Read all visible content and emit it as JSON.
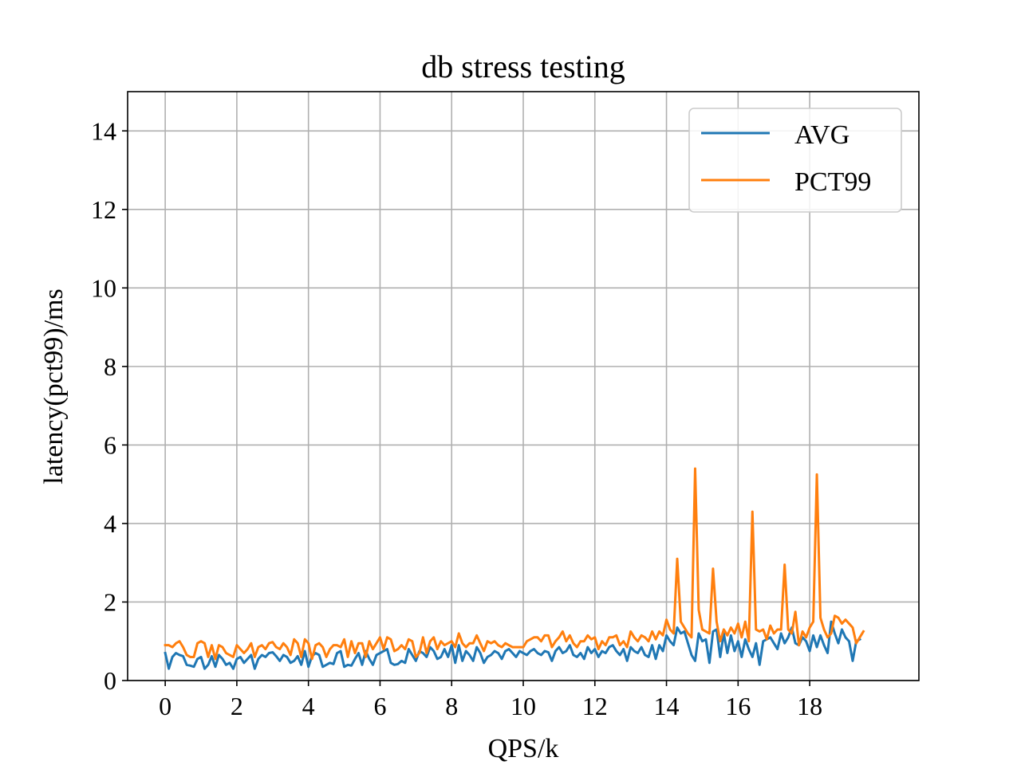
{
  "chart_data": {
    "type": "line",
    "title": "db stress testing",
    "xlabel": "QPS/k",
    "ylabel": "latency(pct99)/ms",
    "xlim": [
      -1.05,
      21.05
    ],
    "ylim": [
      0,
      15
    ],
    "xticks": [
      0,
      2,
      4,
      6,
      8,
      10,
      12,
      14,
      16,
      18
    ],
    "yticks": [
      0,
      2,
      4,
      6,
      8,
      10,
      12,
      14
    ],
    "grid": true,
    "legend_position": "top-right",
    "x_start": 0,
    "x_step": 0.1,
    "series": [
      {
        "name": "AVG",
        "color": "#1f77b4",
        "values": [
          0.7,
          0.3,
          0.6,
          0.7,
          0.65,
          0.62,
          0.4,
          0.38,
          0.35,
          0.55,
          0.6,
          0.3,
          0.4,
          0.62,
          0.35,
          0.65,
          0.55,
          0.4,
          0.45,
          0.3,
          0.55,
          0.6,
          0.45,
          0.55,
          0.65,
          0.3,
          0.55,
          0.65,
          0.6,
          0.7,
          0.72,
          0.62,
          0.5,
          0.65,
          0.6,
          0.45,
          0.5,
          0.62,
          0.4,
          0.75,
          0.35,
          0.62,
          0.7,
          0.65,
          0.35,
          0.4,
          0.45,
          0.42,
          0.7,
          0.75,
          0.35,
          0.4,
          0.38,
          0.55,
          0.7,
          0.4,
          0.75,
          0.55,
          0.4,
          0.65,
          0.7,
          0.75,
          0.8,
          0.45,
          0.4,
          0.42,
          0.5,
          0.45,
          0.8,
          0.65,
          0.5,
          0.75,
          0.7,
          0.6,
          0.85,
          0.75,
          0.55,
          0.6,
          0.8,
          0.6,
          0.9,
          0.45,
          0.9,
          0.5,
          0.75,
          0.65,
          0.5,
          0.85,
          0.7,
          0.45,
          0.6,
          0.65,
          0.75,
          0.7,
          0.55,
          0.75,
          0.8,
          0.7,
          0.6,
          0.75,
          0.7,
          0.65,
          0.75,
          0.8,
          0.7,
          0.65,
          0.75,
          0.72,
          0.5,
          0.75,
          0.85,
          0.7,
          0.75,
          0.9,
          0.65,
          0.6,
          0.7,
          0.55,
          0.85,
          0.7,
          0.8,
          0.6,
          0.75,
          0.7,
          0.85,
          0.9,
          0.75,
          0.65,
          0.8,
          0.5,
          0.85,
          0.75,
          0.7,
          0.85,
          0.65,
          0.6,
          0.9,
          0.55,
          0.9,
          0.75,
          1.15,
          1.0,
          0.9,
          1.35,
          1.2,
          1.25,
          0.95,
          0.65,
          0.5,
          1.2,
          1.0,
          1.05,
          0.45,
          1.25,
          1.3,
          0.6,
          1.2,
          0.7,
          1.15,
          0.75,
          1.0,
          0.6,
          1.05,
          0.8,
          0.6,
          0.95,
          0.4,
          1.0,
          1.05,
          1.1,
          0.95,
          0.8,
          1.2,
          0.95,
          1.1,
          1.35,
          0.95,
          0.9,
          1.1,
          1.0,
          0.75,
          1.15,
          0.85,
          1.15,
          0.9,
          0.7,
          1.5,
          1.2,
          0.95,
          1.3,
          1.1,
          1.0,
          0.5,
          1.0,
          1.05
        ],
        "first_values_note": ""
      },
      {
        "name": "PCT99",
        "color": "#ff7f0e",
        "values": [
          0.9,
          0.9,
          0.85,
          0.95,
          1.0,
          0.85,
          0.65,
          0.6,
          0.6,
          0.95,
          1.0,
          0.95,
          0.6,
          0.9,
          0.55,
          0.9,
          0.85,
          0.7,
          0.65,
          0.6,
          0.9,
          0.8,
          0.7,
          0.8,
          0.95,
          0.6,
          0.85,
          0.9,
          0.8,
          0.95,
          0.98,
          0.85,
          0.8,
          0.95,
          0.85,
          0.65,
          1.05,
          0.95,
          0.6,
          1.05,
          0.95,
          0.55,
          0.9,
          0.95,
          0.85,
          0.6,
          0.8,
          0.9,
          0.9,
          0.85,
          1.05,
          0.6,
          1.0,
          0.7,
          0.95,
          0.95,
          0.6,
          1.0,
          0.8,
          0.95,
          1.1,
          0.8,
          1.1,
          1.05,
          0.75,
          0.8,
          0.9,
          0.8,
          1.05,
          1.0,
          0.6,
          0.7,
          1.1,
          0.7,
          1.0,
          1.1,
          0.8,
          1.0,
          0.9,
          0.95,
          1.0,
          0.85,
          1.2,
          0.95,
          0.85,
          0.95,
          0.95,
          1.15,
          0.95,
          0.75,
          1.0,
          0.95,
          1.0,
          0.9,
          0.85,
          0.95,
          0.9,
          0.85,
          0.85,
          0.85,
          0.85,
          1.0,
          1.05,
          1.1,
          1.1,
          1.0,
          1.15,
          1.15,
          0.85,
          1.0,
          1.1,
          1.25,
          1.0,
          1.15,
          0.95,
          0.85,
          1.0,
          1.0,
          1.15,
          1.05,
          1.1,
          0.8,
          1.0,
          0.9,
          1.1,
          1.1,
          1.15,
          0.9,
          1.0,
          0.85,
          1.25,
          1.1,
          1.0,
          1.15,
          1.1,
          1.0,
          1.25,
          1.05,
          1.25,
          1.15,
          1.55,
          1.3,
          1.2,
          3.1,
          1.5,
          1.35,
          1.2,
          1.1,
          5.4,
          1.8,
          1.3,
          1.25,
          1.2,
          2.85,
          1.5,
          1.0,
          1.3,
          1.15,
          1.35,
          1.2,
          1.45,
          1.1,
          1.5,
          1.0,
          4.3,
          1.3,
          1.25,
          1.3,
          1.05,
          1.4,
          1.2,
          1.3,
          1.3,
          2.95,
          1.3,
          1.2,
          1.75,
          0.9,
          1.25,
          1.1,
          1.35,
          1.5,
          5.25,
          1.6,
          1.3,
          1.1,
          1.2,
          1.65,
          1.6,
          1.45,
          1.55,
          1.45,
          1.35,
          0.95,
          1.1,
          1.25
        ]
      }
    ]
  }
}
